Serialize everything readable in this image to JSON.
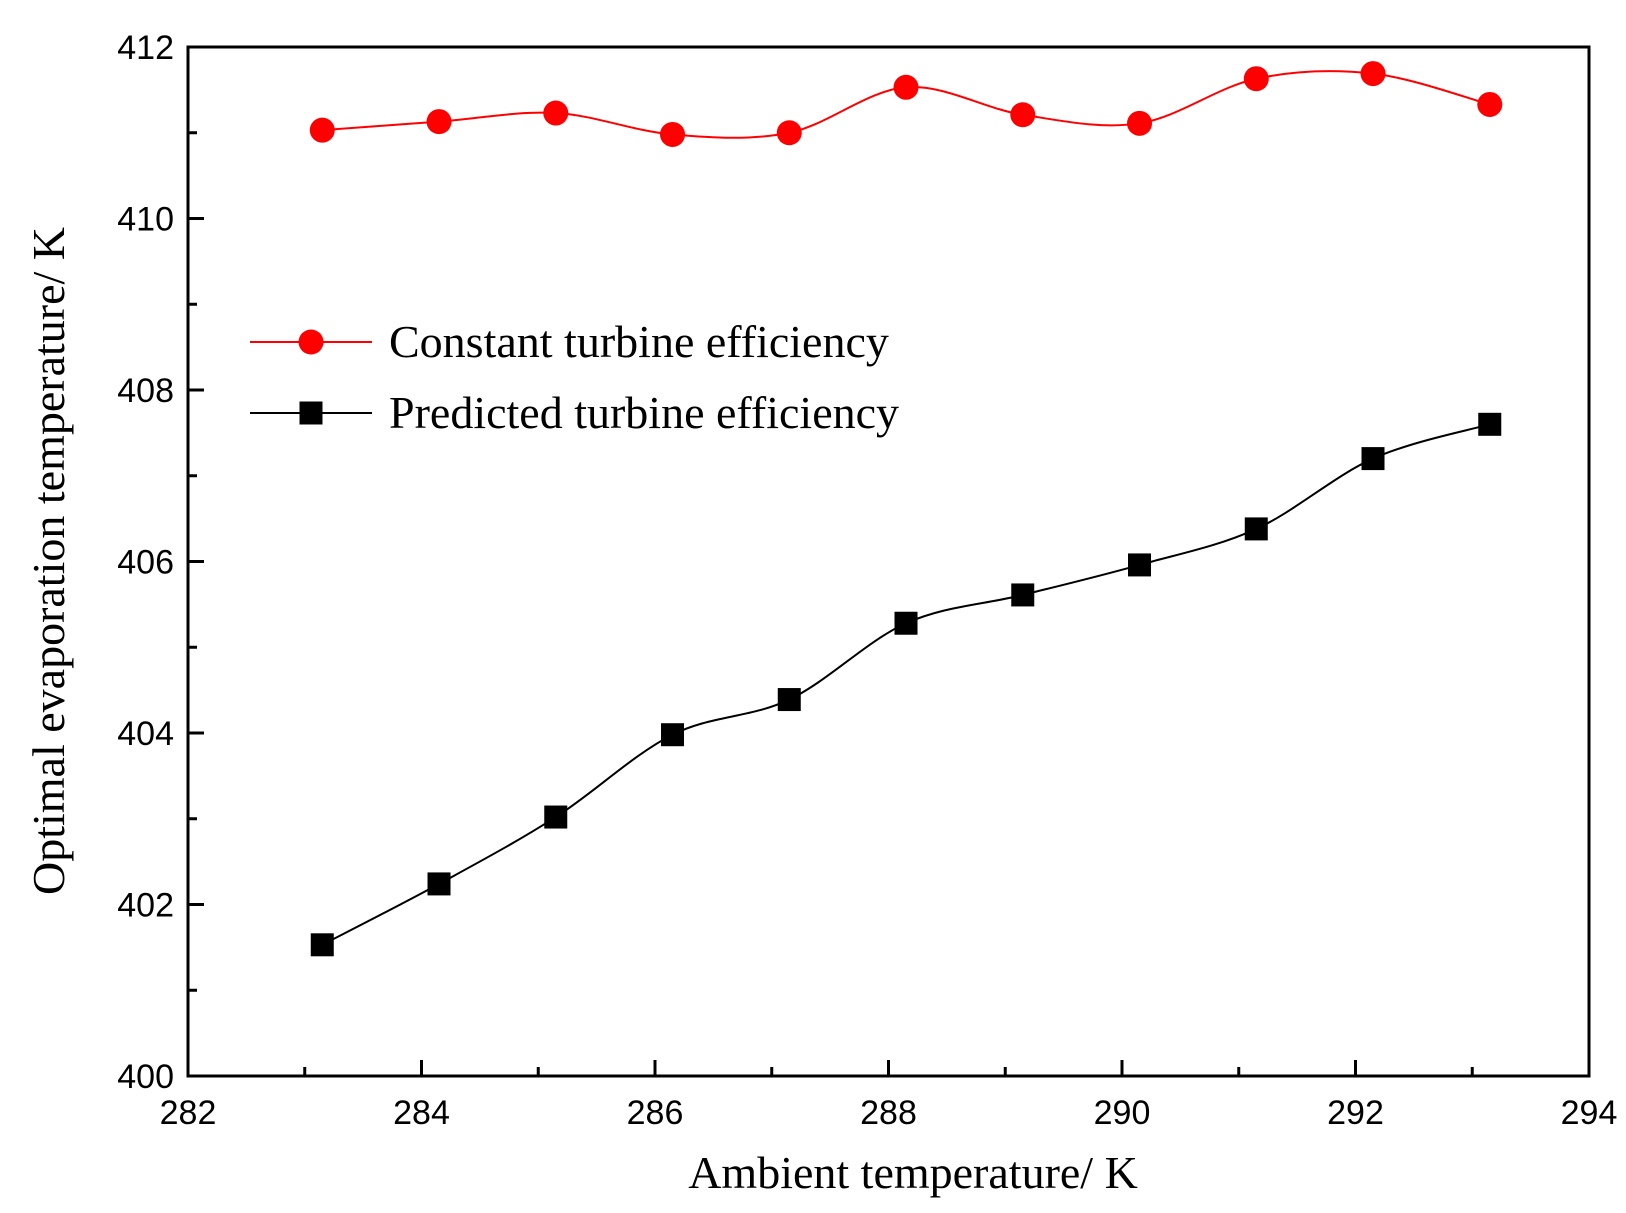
{
  "chart_data": {
    "type": "line",
    "title": "",
    "xlabel": "Ambient temperature/ K",
    "ylabel": "Optimal evaporation temperature/ K",
    "xlim": [
      282,
      294
    ],
    "ylim": [
      400,
      412
    ],
    "xticks": [
      282,
      284,
      286,
      288,
      290,
      292,
      294
    ],
    "yticks": [
      400,
      402,
      404,
      406,
      408,
      410,
      412
    ],
    "grid": false,
    "legend_position": "upper-left",
    "x": [
      283.15,
      284.15,
      285.15,
      286.15,
      287.15,
      288.15,
      289.15,
      290.15,
      291.15,
      292.15,
      293.15
    ],
    "series": [
      {
        "name": "Constant turbine efficiency",
        "color": "#ff0000",
        "marker": "circle",
        "values": [
          411.03,
          411.13,
          411.23,
          410.98,
          411.0,
          411.53,
          411.21,
          411.11,
          411.63,
          411.69,
          411.33
        ]
      },
      {
        "name": "Predicted turbine efficiency",
        "color": "#000000",
        "marker": "square",
        "values": [
          401.53,
          402.24,
          403.02,
          403.98,
          404.39,
          405.28,
          405.61,
          405.96,
          406.38,
          407.2,
          407.6
        ]
      }
    ]
  }
}
